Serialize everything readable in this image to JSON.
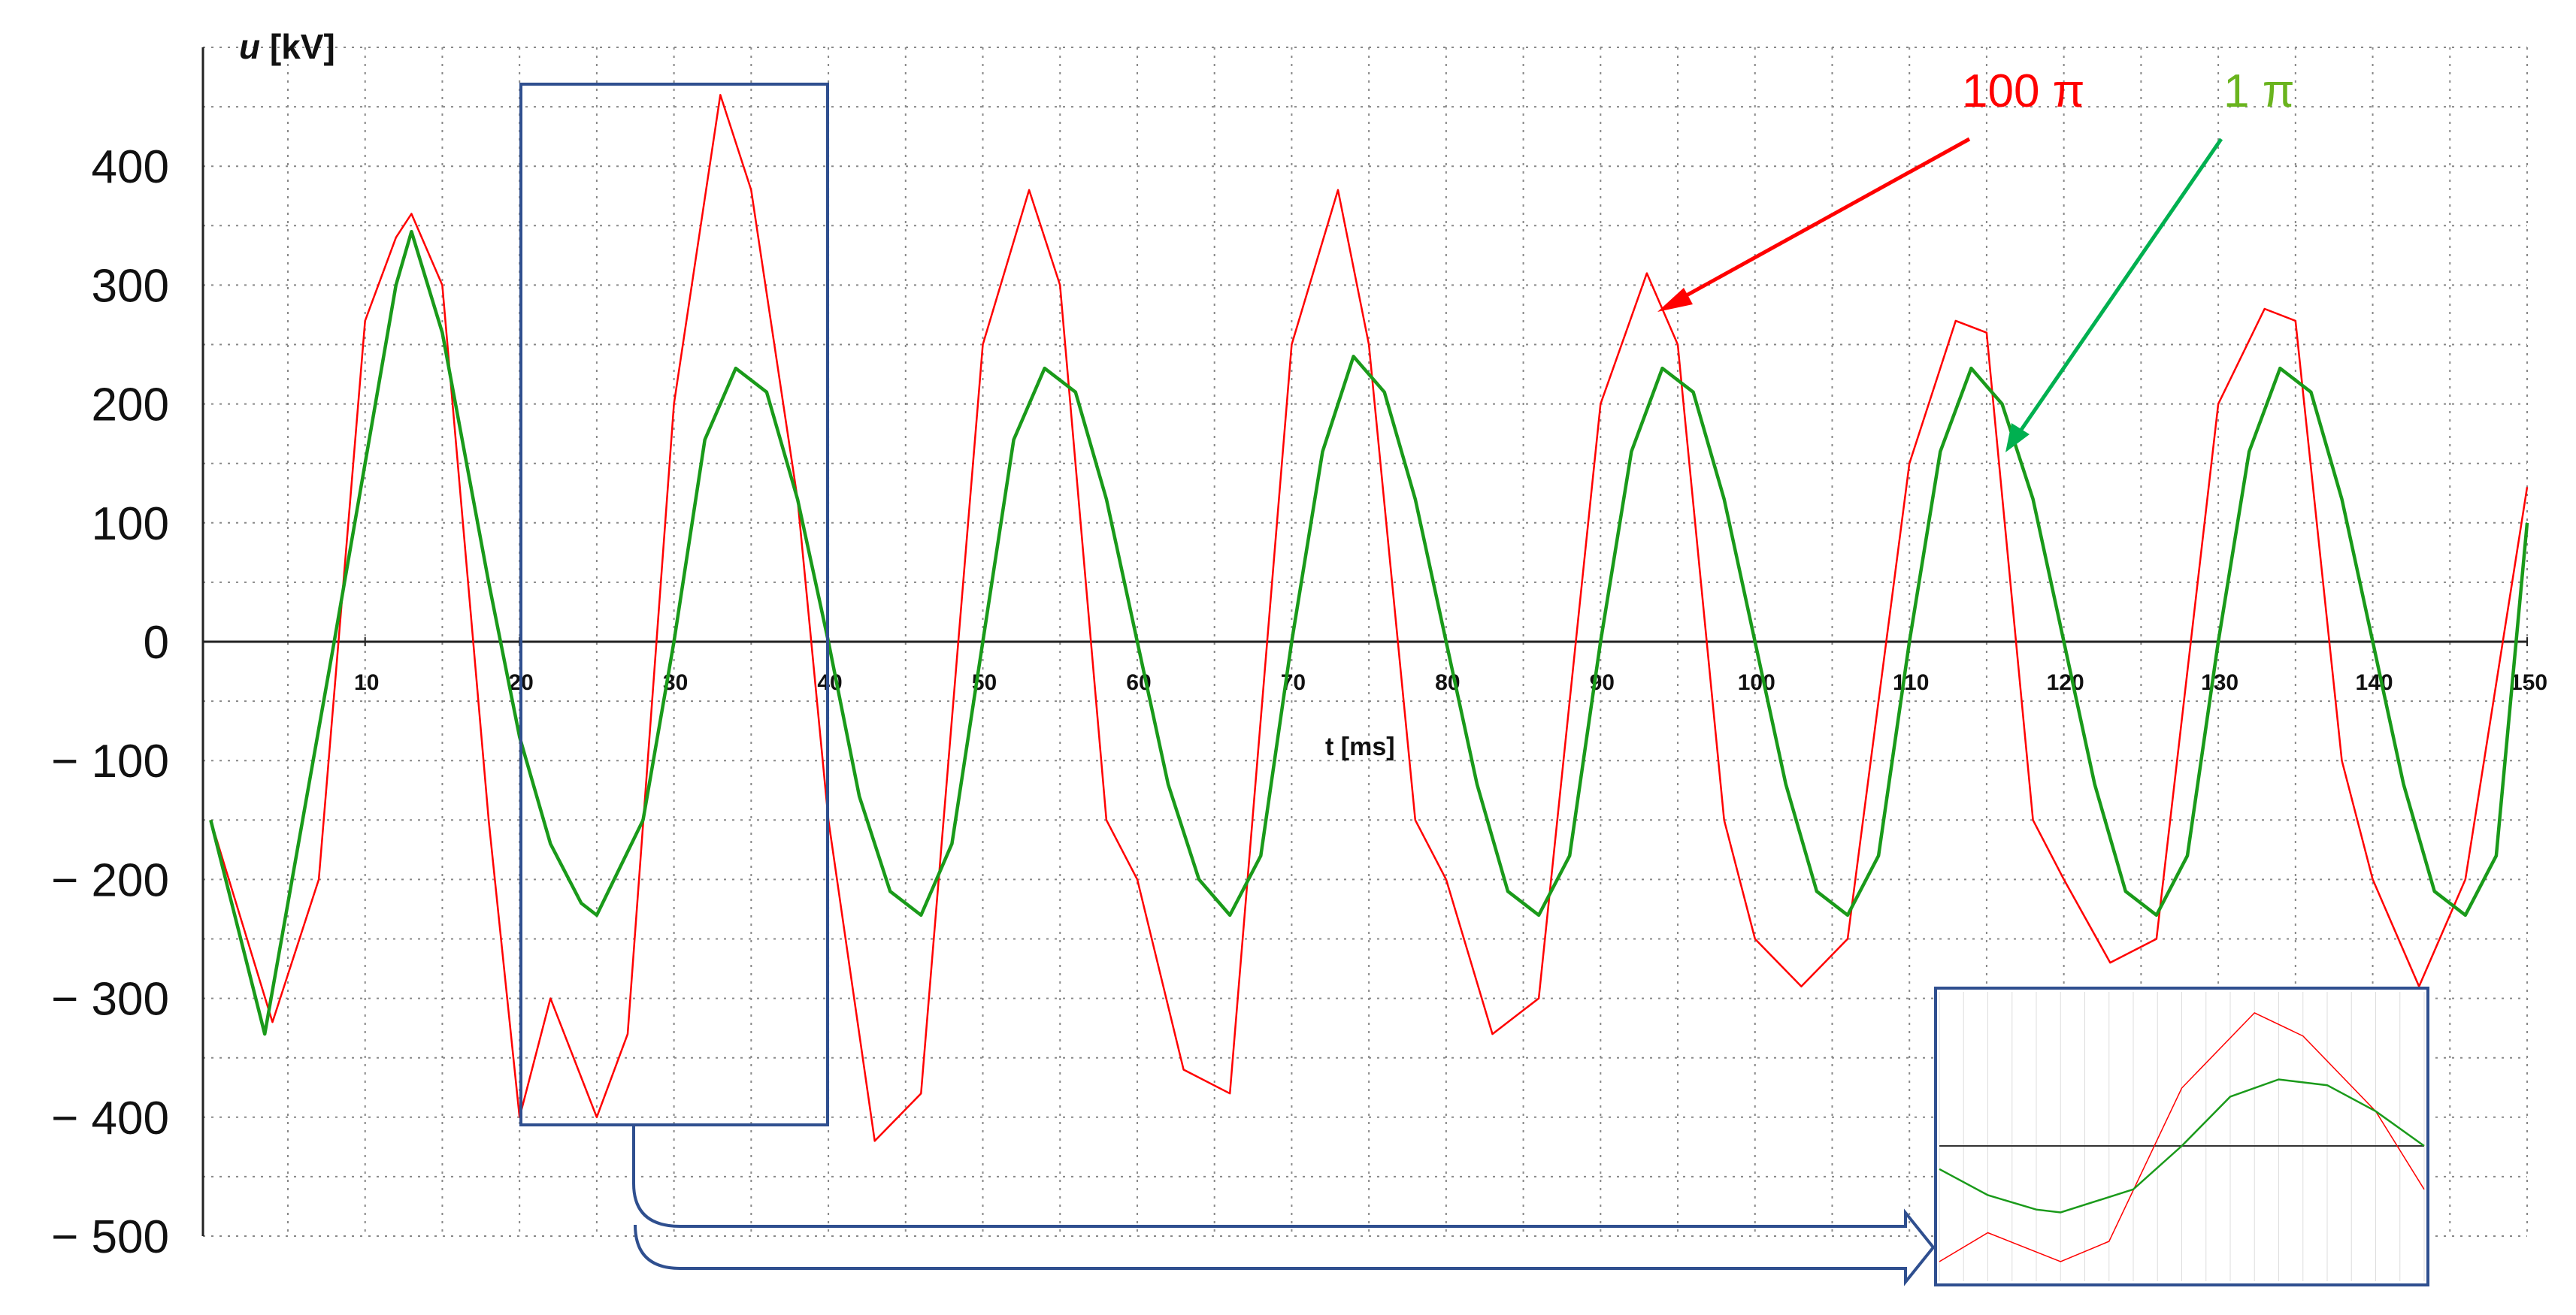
{
  "chart_data": {
    "type": "line",
    "ylabel": {
      "symbol": "u",
      "unit": "[kV]"
    },
    "xlabel": "t [ms]",
    "xlim": [
      -0.5,
      150
    ],
    "ylim": [
      -500,
      500
    ],
    "x_ticks": [
      "10",
      "20",
      "30",
      "40",
      "50",
      "60",
      "70",
      "80",
      "90",
      "100",
      "110",
      "120",
      "130",
      "140",
      "150"
    ],
    "y_ticks": [
      "400",
      "300",
      "200",
      "100",
      "0",
      "− 100",
      "− 200",
      "− 300",
      "− 400",
      "− 500"
    ],
    "grid": "dotted",
    "series": [
      {
        "name": "100 π",
        "color": "#ff0000",
        "description": "voltage with superimposed high-frequency oscillations",
        "x": [
          0,
          4,
          7,
          10,
          12,
          13,
          15,
          18,
          20,
          22,
          25,
          27,
          30,
          33,
          35,
          38,
          40,
          43,
          46,
          50,
          53,
          55,
          58,
          60,
          63,
          66,
          70,
          73,
          75,
          78,
          80,
          83,
          86,
          90,
          93,
          95,
          98,
          100,
          103,
          106,
          110,
          113,
          115,
          118,
          120,
          123,
          126,
          130,
          133,
          135,
          138,
          140,
          143,
          146,
          150
        ],
        "y": [
          -150,
          -320,
          -200,
          270,
          340,
          360,
          300,
          -150,
          -400,
          -300,
          -400,
          -330,
          200,
          460,
          380,
          120,
          -150,
          -420,
          -380,
          250,
          380,
          300,
          -150,
          -200,
          -360,
          -380,
          250,
          380,
          250,
          -150,
          -200,
          -330,
          -300,
          200,
          310,
          250,
          -150,
          -250,
          -290,
          -250,
          150,
          270,
          260,
          -150,
          -200,
          -270,
          -250,
          200,
          280,
          270,
          -100,
          -200,
          -290,
          -200,
          130
        ]
      },
      {
        "name": "1 π",
        "color": "#1a9a1a",
        "description": "filtered voltage",
        "x": [
          0,
          3.5,
          8,
          10,
          12,
          13,
          15,
          18,
          20,
          22,
          24,
          25,
          28,
          30,
          32,
          34,
          36,
          38,
          40,
          42,
          44,
          46,
          48,
          50,
          52,
          54,
          56,
          58,
          60,
          62,
          64,
          66,
          68,
          70,
          72,
          74,
          76,
          78,
          80,
          82,
          84,
          86,
          88,
          90,
          92,
          94,
          96,
          98,
          100,
          102,
          104,
          106,
          108,
          110,
          112,
          114,
          116,
          118,
          120,
          122,
          124,
          126,
          128,
          130,
          132,
          134,
          136,
          138,
          140,
          142,
          144,
          146,
          148,
          150
        ],
        "y": [
          -150,
          -330,
          0,
          150,
          300,
          345,
          260,
          50,
          -80,
          -170,
          -220,
          -230,
          -150,
          0,
          170,
          230,
          210,
          120,
          0,
          -130,
          -210,
          -230,
          -170,
          0,
          170,
          230,
          210,
          120,
          0,
          -120,
          -200,
          -230,
          -180,
          0,
          160,
          240,
          210,
          120,
          0,
          -120,
          -210,
          -230,
          -180,
          0,
          160,
          230,
          210,
          120,
          0,
          -120,
          -210,
          -230,
          -180,
          0,
          160,
          230,
          200,
          120,
          0,
          -120,
          -210,
          -230,
          -180,
          0,
          160,
          230,
          210,
          120,
          0,
          -120,
          -210,
          -230,
          -180,
          100
        ]
      }
    ]
  }
}
